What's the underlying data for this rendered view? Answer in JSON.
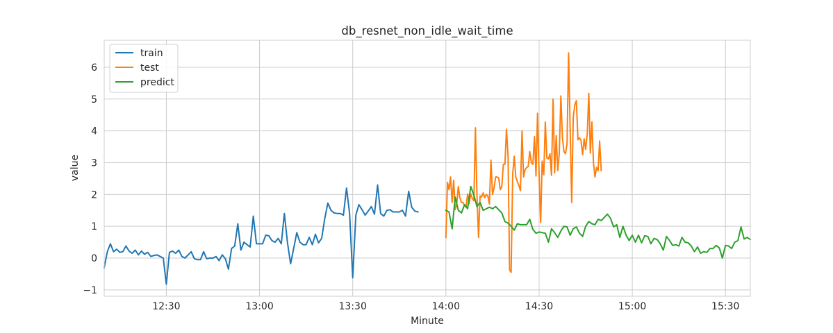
{
  "chart_data": {
    "type": "line",
    "title": "db_resnet_non_idle_wait_time",
    "xlabel": "Minute",
    "ylabel": "value",
    "x_ticks": [
      "12:30",
      "13:00",
      "13:30",
      "14:00",
      "14:30",
      "15:00",
      "15:30"
    ],
    "x_tick_minutes": [
      750,
      780,
      810,
      840,
      870,
      900,
      930
    ],
    "y_ticks": [
      "−1",
      "0",
      "1",
      "2",
      "3",
      "4",
      "5",
      "6"
    ],
    "y_tick_values": [
      -1,
      0,
      1,
      2,
      3,
      4,
      5,
      6
    ],
    "xlim_minutes": [
      730,
      829.5
    ],
    "ylim": [
      -1.2,
      6.85
    ],
    "grid": true,
    "legend_position": "top-left",
    "series": [
      {
        "name": "train",
        "color": "#1f77b4",
        "start_minute": 730,
        "step_minutes": 1,
        "values": [
          -0.3,
          0.2,
          0.45,
          0.2,
          0.28,
          0.18,
          0.2,
          0.38,
          0.22,
          0.15,
          0.25,
          0.1,
          0.22,
          0.12,
          0.18,
          0.05,
          0.08,
          0.1,
          0.05,
          0.0,
          -0.82,
          0.18,
          0.22,
          0.15,
          0.25,
          0.05,
          0.0,
          0.1,
          0.2,
          -0.02,
          -0.05,
          -0.05,
          0.2,
          -0.02,
          0.0,
          0.0,
          0.05,
          -0.08,
          0.1,
          -0.02,
          -0.35,
          0.3,
          0.38,
          1.08,
          0.25,
          0.5,
          0.42,
          0.35,
          1.32,
          0.45,
          0.45,
          0.45,
          0.72,
          0.7,
          0.55,
          0.5,
          0.62,
          0.45,
          1.4,
          0.48,
          -0.18,
          0.3,
          0.8,
          0.5,
          0.42,
          0.42,
          0.65,
          0.42,
          0.75,
          0.48,
          0.62,
          1.25,
          1.73,
          1.5,
          1.42,
          1.4,
          1.4,
          1.35,
          2.2,
          1.4,
          -0.62,
          1.35,
          1.68,
          1.52,
          1.35,
          1.48,
          1.62,
          1.38,
          2.3,
          1.4,
          1.32,
          1.5,
          1.52,
          1.45,
          1.45,
          1.45,
          1.5,
          1.32,
          2.1,
          1.6,
          1.48,
          1.45
        ]
      },
      {
        "name": "test",
        "color": "#ff7f0e",
        "start_minute": 840,
        "step_minutes": 0.5,
        "values": [
          0.65,
          2.38,
          2.15,
          2.55,
          1.75,
          2.45,
          1.52,
          1.72,
          2.25,
          1.9,
          1.75,
          1.75,
          1.65,
          1.6,
          2.02,
          1.72,
          2.02,
          1.88,
          1.8,
          4.1,
          2.0,
          0.65,
          1.95,
          1.92,
          2.05,
          1.9,
          2.0,
          1.95,
          1.7,
          3.08,
          2.0,
          2.2,
          2.55,
          2.55,
          2.52,
          2.15,
          2.25,
          2.95,
          2.95,
          4.05,
          3.2,
          -0.38,
          -0.45,
          2.65,
          3.2,
          2.55,
          2.4,
          2.28,
          2.12,
          4.0,
          2.55,
          2.78,
          2.85,
          2.88,
          3.35,
          3.0,
          2.95,
          3.82,
          2.58,
          4.55,
          2.6,
          1.12,
          3.05,
          2.62,
          4.28,
          3.15,
          3.12,
          3.28,
          2.6,
          5.0,
          2.68,
          3.85,
          2.75,
          3.28,
          5.1,
          3.8,
          3.35,
          3.28,
          3.6,
          6.45,
          4.05,
          1.75,
          4.42,
          4.82,
          4.95,
          3.72,
          3.78,
          3.7,
          3.25,
          3.75,
          3.42,
          3.92,
          5.18,
          3.3,
          4.28,
          3.0,
          2.55,
          2.85,
          2.75,
          3.68,
          2.75
        ]
      },
      {
        "name": "predict",
        "color": "#2ca02c",
        "start_minute": 840,
        "step_minutes": 1,
        "values": [
          1.5,
          1.45,
          0.92,
          1.92,
          1.5,
          1.42,
          1.68,
          1.55,
          2.25,
          1.98,
          1.62,
          1.75,
          1.5,
          1.55,
          1.6,
          1.55,
          1.62,
          1.52,
          1.42,
          1.15,
          1.1,
          1.0,
          0.88,
          1.08,
          1.05,
          1.05,
          1.05,
          1.22,
          0.9,
          0.78,
          0.82,
          0.8,
          0.78,
          0.5,
          0.92,
          0.8,
          0.65,
          0.85,
          1.0,
          0.98,
          0.72,
          0.92,
          0.98,
          0.78,
          0.68,
          1.0,
          1.15,
          1.08,
          1.05,
          1.22,
          1.18,
          1.28,
          1.38,
          1.25,
          0.98,
          1.05,
          0.65,
          1.0,
          0.72,
          0.55,
          0.72,
          0.5,
          0.72,
          0.48,
          0.7,
          0.68,
          0.45,
          0.62,
          0.58,
          0.45,
          0.25,
          0.68,
          0.55,
          0.4,
          0.42,
          0.38,
          0.65,
          0.5,
          0.48,
          0.38,
          0.2,
          0.35,
          0.15,
          0.2,
          0.18,
          0.3,
          0.3,
          0.4,
          0.32,
          0.0,
          0.4,
          0.38,
          0.3,
          0.5,
          0.55,
          0.98,
          0.6,
          0.65,
          0.58
        ]
      }
    ]
  }
}
